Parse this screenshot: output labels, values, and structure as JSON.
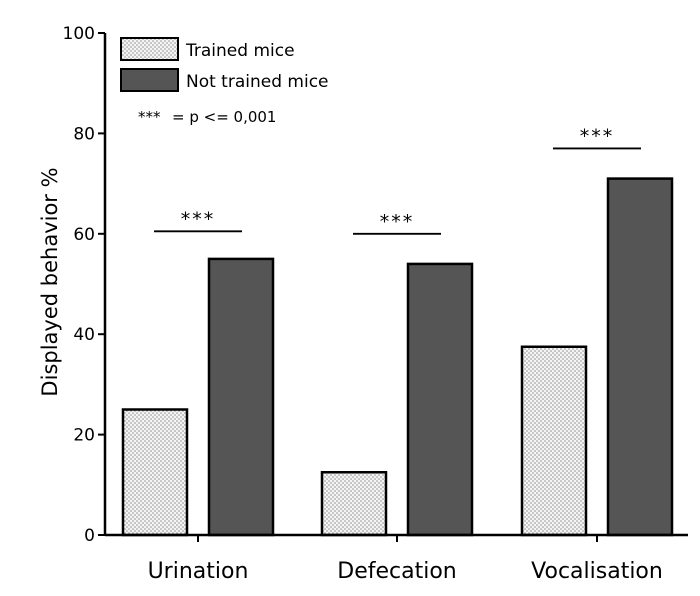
{
  "chart_data": {
    "type": "bar",
    "title": "",
    "xlabel": "",
    "ylabel": "Displayed behavior %",
    "ylim": [
      0,
      100
    ],
    "yticks": [
      0,
      20,
      40,
      60,
      80,
      100
    ],
    "categories": [
      "Urination",
      "Defecation",
      "Vocalisation"
    ],
    "series": [
      {
        "name": "Trained mice",
        "values": [
          25,
          12.5,
          37.5
        ],
        "color": "#e6e6e6",
        "pattern": "dotted"
      },
      {
        "name": "Not trained mice",
        "values": [
          55,
          54,
          71
        ],
        "color": "#555555",
        "pattern": "solid"
      }
    ],
    "significance": [
      {
        "category": "Urination",
        "label": "***",
        "level": 60.5
      },
      {
        "category": "Defecation",
        "label": "***",
        "level": 60
      },
      {
        "category": "Vocalisation",
        "label": "***",
        "level": 77
      }
    ],
    "legend": {
      "position": "top-left",
      "entries": [
        "Trained mice",
        "Not trained mice"
      ],
      "note_stars": "***",
      "note_text": "= p <= 0,001"
    },
    "grid": false
  }
}
